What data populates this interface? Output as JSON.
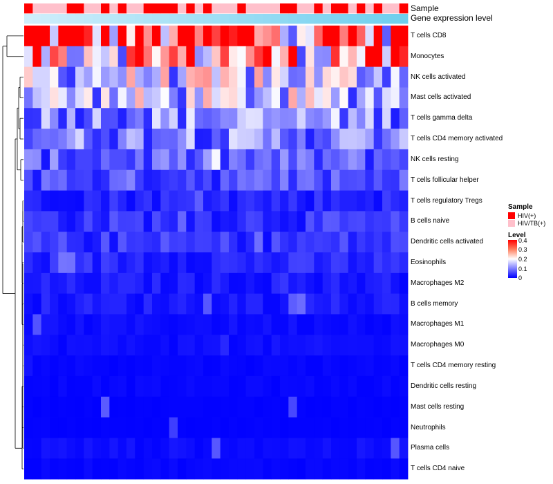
{
  "chart_data": {
    "type": "heatmap",
    "title": "",
    "annotation_tracks": [
      "Sample",
      "Gene expression level"
    ],
    "rows": [
      "T cells CD8",
      "Monocytes",
      "NK cells activated",
      "Mast cells activated",
      "T cells gamma delta",
      "T cells CD4 memory activated",
      "NK cells resting",
      "T cells follicular helper",
      "T cells regulatory  Tregs",
      "B cells naive",
      "Dendritic cells activated",
      "Eosinophils",
      "Macrophages M2",
      "B cells memory",
      "Macrophages M1",
      "Macrophages M0",
      "T cells CD4 memory resting",
      "Dendritic cells resting",
      "Mast cells resting",
      "Neutrophils",
      "Plasma cells",
      "T cells CD4 naive"
    ],
    "row_means": [
      0.33,
      0.27,
      0.16,
      0.15,
      0.11,
      0.1,
      0.07,
      0.06,
      0.03,
      0.04,
      0.04,
      0.03,
      0.02,
      0.02,
      0.01,
      0.01,
      0.005,
      0.005,
      0.002,
      0.002,
      0.01,
      0.005
    ],
    "n_samples": 45,
    "sample_groups": [
      0,
      1,
      1,
      1,
      1,
      0,
      0,
      1,
      1,
      0,
      1,
      0,
      1,
      1,
      0,
      0,
      0,
      0,
      1,
      0,
      1,
      0,
      1,
      1,
      1,
      0,
      1,
      1,
      1,
      1,
      0,
      0,
      1,
      1,
      0,
      1,
      0,
      0,
      1,
      0,
      1,
      0,
      1,
      1,
      0
    ],
    "legend_sample": {
      "title": "Sample",
      "items": [
        {
          "label": "HIV(+)",
          "color": "#ff0000"
        },
        {
          "label": "HIV/TB(+)",
          "color": "#ffc0cb"
        }
      ]
    },
    "legend_level": {
      "title": "Level",
      "ticks": [
        "0.4",
        "0.3",
        "0.2",
        "0.1",
        "0"
      ],
      "range": [
        0,
        0.4
      ],
      "colors": [
        "#0000ff",
        "#ffffff",
        "#ff0000"
      ]
    },
    "expression_track_color": "#6fcfee",
    "expression_track_light": "#cfeefb"
  }
}
